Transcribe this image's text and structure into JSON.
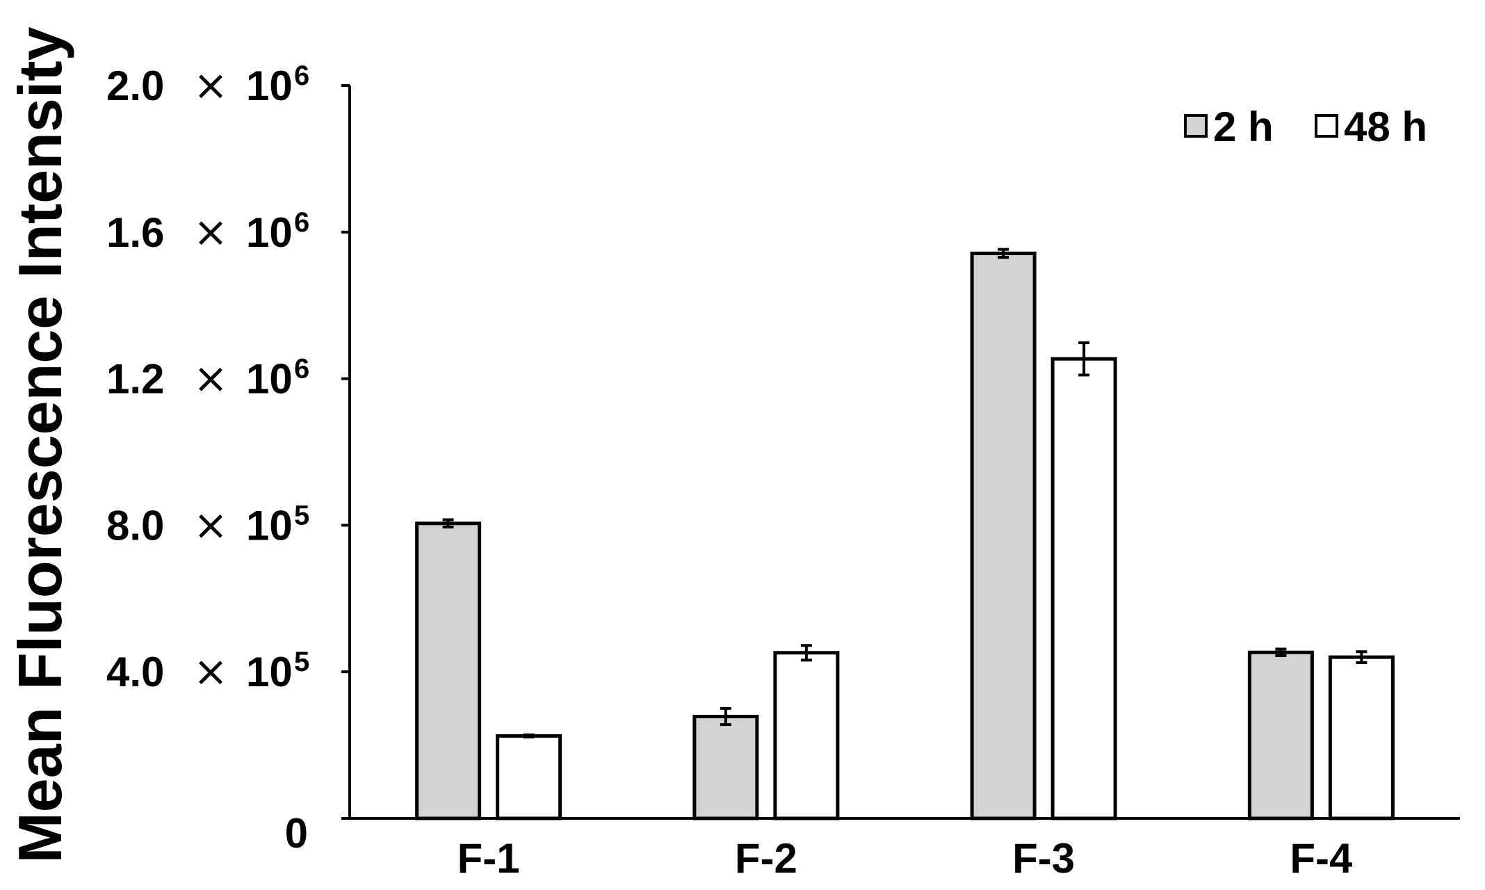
{
  "chart_data": {
    "type": "bar",
    "ylabel": "Mean Fluorescence Intensity",
    "categories": [
      "F-1",
      "F-2",
      "F-3",
      "F-4"
    ],
    "series": [
      {
        "name": "2 h",
        "color": "#d3d3d3",
        "values": [
          805000,
          278000,
          1542000,
          453000
        ],
        "errors": [
          10000,
          22000,
          11000,
          9000
        ]
      },
      {
        "name": "48 h",
        "color": "#ffffff",
        "values": [
          225000,
          452000,
          1254000,
          440000
        ],
        "errors": [
          3000,
          20000,
          44000,
          15000
        ]
      }
    ],
    "ylim": [
      0,
      2000000
    ],
    "yticks": [
      {
        "value": 0,
        "mantissa": "0",
        "exp": ""
      },
      {
        "value": 400000,
        "mantissa": "4.0",
        "exp": "5"
      },
      {
        "value": 800000,
        "mantissa": "8.0",
        "exp": "5"
      },
      {
        "value": 1200000,
        "mantissa": "1.2",
        "exp": "6"
      },
      {
        "value": 1600000,
        "mantissa": "1.6",
        "exp": "6"
      },
      {
        "value": 2000000,
        "mantissa": "2.0",
        "exp": "6"
      }
    ],
    "tick_times": "×",
    "tick_base": "10",
    "legend_position": "top-right",
    "grid": false
  }
}
